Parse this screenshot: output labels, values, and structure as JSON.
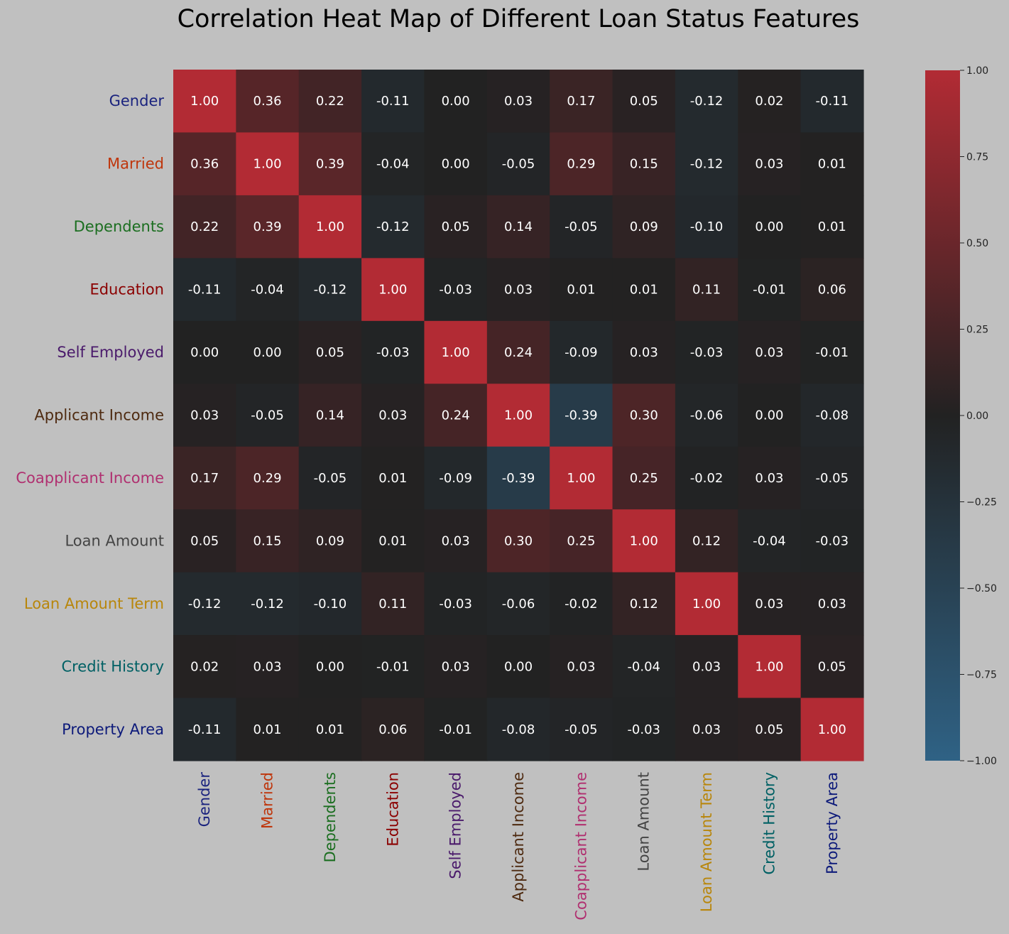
{
  "chart_data": {
    "type": "heatmap",
    "title": "Correlation Heat Map of Different Loan Status Features",
    "labels": [
      "Gender",
      "Married",
      "Dependents",
      "Education",
      "Self Employed",
      "Applicant Income",
      "Coapplicant Income",
      "Loan Amount",
      "Loan Amount Term",
      "Credit History",
      "Property Area"
    ],
    "label_colors": [
      "#1a237e",
      "#bf360c",
      "#1b6e20",
      "#8b0000",
      "#4a1a6b",
      "#4e2a10",
      "#b03070",
      "#444444",
      "#b8860b",
      "#006064",
      "#0d1a7a"
    ],
    "values": [
      [
        1.0,
        0.36,
        0.22,
        -0.11,
        -0.0,
        0.03,
        0.17,
        0.05,
        -0.12,
        0.02,
        -0.11
      ],
      [
        0.36,
        1.0,
        0.39,
        -0.04,
        0.0,
        -0.05,
        0.29,
        0.15,
        -0.12,
        0.03,
        0.01
      ],
      [
        0.22,
        0.39,
        1.0,
        -0.12,
        0.05,
        0.14,
        -0.05,
        0.09,
        -0.1,
        -0.0,
        0.01
      ],
      [
        -0.11,
        -0.04,
        -0.12,
        1.0,
        -0.03,
        0.03,
        0.01,
        0.01,
        0.11,
        -0.01,
        0.06
      ],
      [
        -0.0,
        0.0,
        0.05,
        -0.03,
        1.0,
        0.24,
        -0.09,
        0.03,
        -0.03,
        0.03,
        -0.01
      ],
      [
        0.03,
        -0.05,
        0.14,
        0.03,
        0.24,
        1.0,
        -0.39,
        0.3,
        -0.06,
        -0.0,
        -0.08
      ],
      [
        0.17,
        0.29,
        -0.05,
        0.01,
        -0.09,
        -0.39,
        1.0,
        0.25,
        -0.02,
        0.03,
        -0.05
      ],
      [
        0.05,
        0.15,
        0.09,
        0.01,
        0.03,
        0.3,
        0.25,
        1.0,
        0.12,
        -0.04,
        -0.03
      ],
      [
        -0.12,
        -0.12,
        -0.1,
        0.11,
        -0.03,
        -0.06,
        -0.02,
        0.12,
        1.0,
        0.03,
        0.03
      ],
      [
        0.02,
        0.03,
        -0.0,
        -0.01,
        0.03,
        -0.0,
        0.03,
        -0.04,
        0.03,
        1.0,
        0.05
      ],
      [
        -0.11,
        0.01,
        0.01,
        0.06,
        -0.01,
        -0.08,
        -0.05,
        -0.03,
        0.03,
        0.05,
        1.0
      ]
    ],
    "annotation_format": "0.00",
    "colorbar": {
      "range": [
        -1.0,
        1.0
      ],
      "ticks": [
        1.0,
        0.75,
        0.5,
        0.25,
        0.0,
        -0.25,
        -0.5,
        -0.75,
        -1.0
      ],
      "tick_labels": [
        "1.00",
        "0.75",
        "0.50",
        "0.25",
        "0.00",
        "−0.25",
        "−0.50",
        "−0.75",
        "−1.00"
      ],
      "colors": {
        "negative": "#2f6285",
        "zero": "#222222",
        "positive": "#b22b34"
      }
    },
    "background": "#c0c0c0",
    "grid": false
  }
}
